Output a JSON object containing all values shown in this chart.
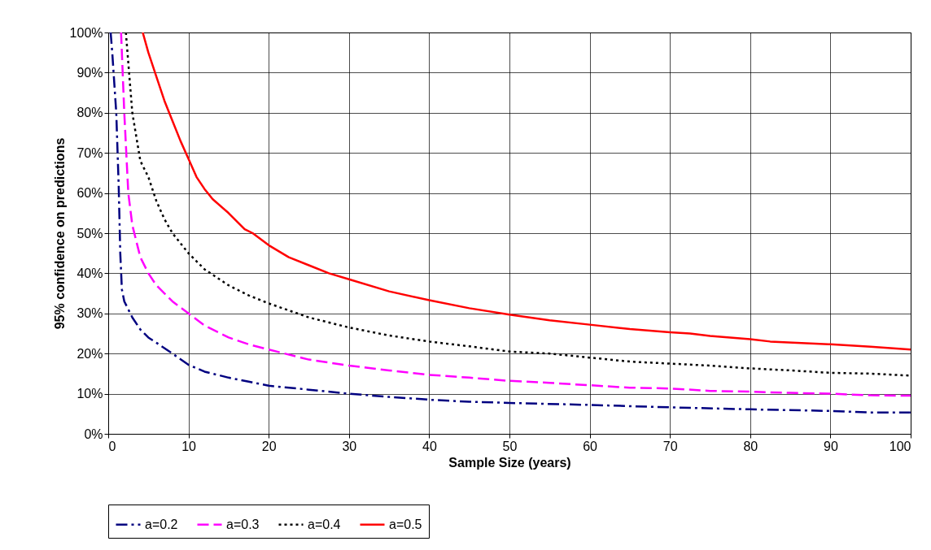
{
  "chart_data": {
    "type": "line",
    "xlabel": "Sample Size (years)",
    "ylabel": "95% confidence on predictions",
    "xlim": [
      0,
      100
    ],
    "xticks": [
      0,
      10,
      20,
      30,
      40,
      50,
      60,
      70,
      80,
      90,
      100
    ],
    "ylim": [
      0,
      100
    ],
    "yticks": [
      {
        "value": 0,
        "label": "0%"
      },
      {
        "value": 10,
        "label": "10%"
      },
      {
        "value": 20,
        "label": "20%"
      },
      {
        "value": 30,
        "label": "30%"
      },
      {
        "value": 40,
        "label": "40%"
      },
      {
        "value": 50,
        "label": "50%"
      },
      {
        "value": 60,
        "label": "60%"
      },
      {
        "value": 70,
        "label": "70%"
      },
      {
        "value": 80,
        "label": "80%"
      },
      {
        "value": 90,
        "label": "90%"
      },
      {
        "value": 100,
        "label": "100%"
      }
    ],
    "grid": true,
    "legend": "bottom",
    "marker": "none",
    "series": [
      {
        "name": "a=0.2",
        "color": "#000080",
        "line_style": "dashdot",
        "x": [
          0.3,
          0.5,
          1,
          1.3,
          1.5,
          1.7,
          2,
          3,
          4,
          5,
          6,
          8,
          10,
          12,
          15,
          17.5,
          20,
          25,
          30,
          35,
          40,
          45,
          50,
          60,
          70,
          80,
          90,
          95,
          100
        ],
        "values": [
          100,
          95,
          80,
          62,
          45,
          36,
          33,
          29,
          26,
          24,
          22.7,
          20,
          17.2,
          15.5,
          14,
          13,
          12,
          11,
          10,
          9.2,
          8.5,
          8,
          7.7,
          7.2,
          6.6,
          6.1,
          5.7,
          5.3,
          5.3
        ]
      },
      {
        "name": "a=0.3",
        "color": "#ff00ff",
        "line_style": "dashed",
        "x": [
          1.6,
          2,
          2.5,
          3,
          4,
          5,
          6,
          7,
          8,
          10,
          12,
          15,
          17.5,
          20,
          25,
          30,
          35,
          40,
          45,
          50,
          55,
          60,
          65,
          70,
          75,
          80,
          85,
          90,
          95,
          100
        ],
        "values": [
          100,
          80,
          60,
          52,
          44,
          40,
          37,
          35,
          33,
          30,
          27,
          24,
          22.3,
          21,
          18.5,
          17,
          15.8,
          14.7,
          14,
          13.2,
          12.7,
          12.1,
          11.5,
          11.3,
          10.7,
          10.5,
          10.2,
          10,
          9.6,
          9.5
        ]
      },
      {
        "name": "a=0.4",
        "color": "#000000",
        "line_style": "dotted",
        "x": [
          2.2,
          3,
          4,
          5,
          6,
          7,
          8,
          9,
          10,
          12,
          15,
          17.5,
          20,
          25,
          30,
          35,
          40,
          45,
          50,
          55,
          60,
          65,
          70,
          75,
          80,
          85,
          90,
          95,
          100
        ],
        "values": [
          100,
          80,
          68,
          64,
          58,
          53.5,
          50,
          47.5,
          45,
          41,
          37,
          34.5,
          32.5,
          29,
          26.5,
          24.5,
          23,
          21.8,
          20.5,
          20,
          19,
          18,
          17.5,
          17,
          16.3,
          15.8,
          15.2,
          15,
          14.5
        ]
      },
      {
        "name": "a=0.5",
        "color": "#ff0000",
        "line_style": "solid",
        "x": [
          4.3,
          5,
          6,
          7,
          8,
          9,
          10,
          11,
          12,
          13,
          15,
          17,
          18,
          20,
          22.5,
          25,
          27.5,
          30,
          35,
          40,
          45,
          50,
          55,
          60,
          65,
          70,
          72.5,
          75,
          80,
          82.5,
          90,
          95,
          100
        ],
        "values": [
          100,
          95,
          89,
          83,
          78,
          73,
          68.5,
          64,
          61,
          58.5,
          55,
          51,
          50,
          47,
          44,
          42,
          40,
          38.5,
          35.5,
          33.3,
          31.3,
          29.7,
          28.3,
          27.2,
          26.1,
          25.3,
          25,
          24.4,
          23.6,
          23,
          22.3,
          21.7,
          21
        ]
      }
    ]
  }
}
